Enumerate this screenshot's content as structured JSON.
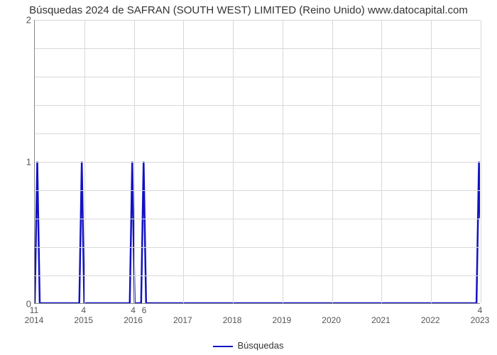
{
  "chart": {
    "type": "line",
    "title": "Búsquedas 2024 de SAFRAN (SOUTH WEST) LIMITED (Reino Unido) www.datocapital.com",
    "title_fontsize": 15,
    "background_color": "#ffffff",
    "grid_color": "#d8d8d8",
    "axis_color": "#888888",
    "label_color": "#555555",
    "x_axis": {
      "min": 2014,
      "max": 2023,
      "ticks": [
        2014,
        2015,
        2016,
        2017,
        2018,
        2019,
        2020,
        2021,
        2022,
        2023
      ]
    },
    "y_axis": {
      "min": 0,
      "max": 2,
      "ticks": [
        0,
        1,
        2
      ],
      "minor_count_between": 4
    },
    "series": {
      "name": "Búsquedas",
      "color": "#1212c4",
      "line_width": 2.5,
      "points": [
        {
          "x": 2014.0,
          "y": 0
        },
        {
          "x": 2014.05,
          "y": 1
        },
        {
          "x": 2014.1,
          "y": 0
        },
        {
          "x": 2014.9,
          "y": 0
        },
        {
          "x": 2014.95,
          "y": 1
        },
        {
          "x": 2015.0,
          "y": 0
        },
        {
          "x": 2015.92,
          "y": 0
        },
        {
          "x": 2015.97,
          "y": 1
        },
        {
          "x": 2016.02,
          "y": 0
        },
        {
          "x": 2016.15,
          "y": 0
        },
        {
          "x": 2016.2,
          "y": 1
        },
        {
          "x": 2016.25,
          "y": 0
        },
        {
          "x": 2022.93,
          "y": 0
        },
        {
          "x": 2022.98,
          "y": 1
        },
        {
          "x": 2023.0,
          "y": 0.6
        }
      ]
    },
    "point_labels": [
      {
        "x": 2014.0,
        "label": "11"
      },
      {
        "x": 2015.0,
        "label": "4"
      },
      {
        "x": 2016.0,
        "label": "4"
      },
      {
        "x": 2016.22,
        "label": "6"
      },
      {
        "x": 2023.0,
        "label": "4"
      }
    ],
    "legend": {
      "label": "Búsquedas",
      "color": "#1212c4"
    }
  }
}
